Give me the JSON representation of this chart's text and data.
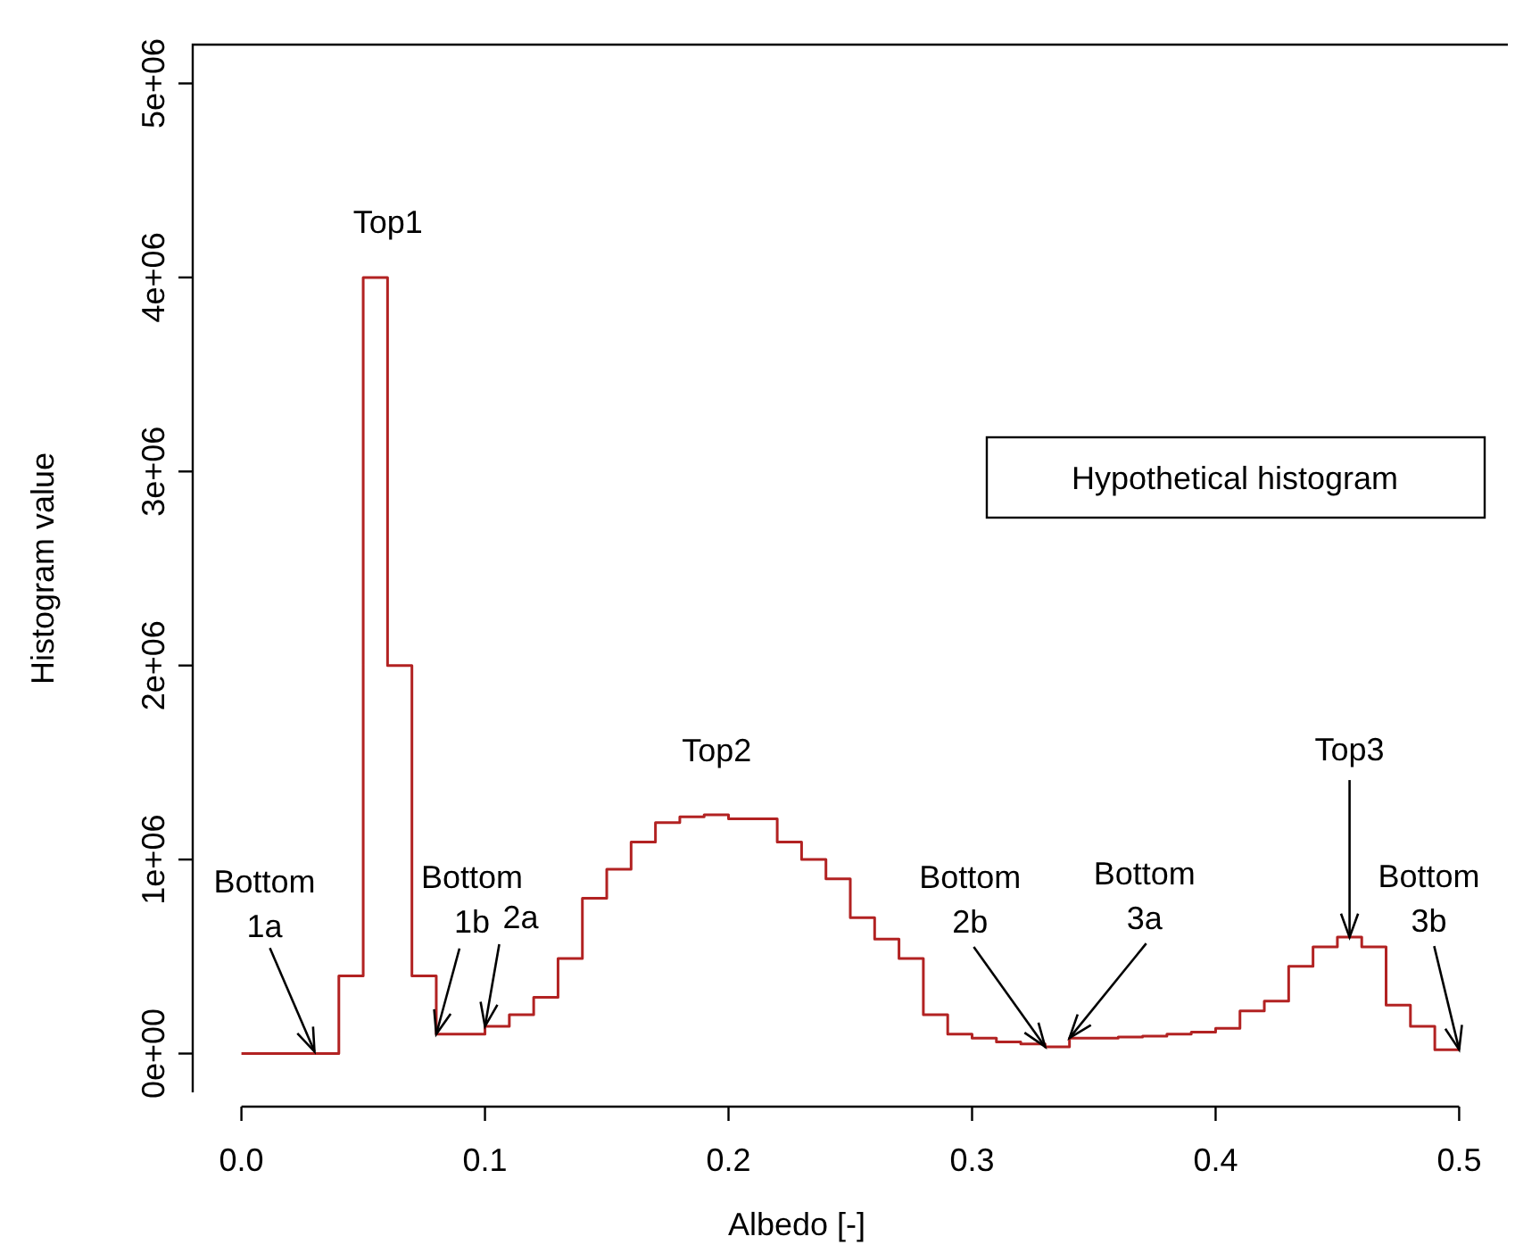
{
  "chart_data": {
    "type": "histogram",
    "xlabel": "Albedo [-]",
    "ylabel": "Histogram value",
    "bins": [
      0,
      0.01,
      0.02,
      0.03,
      0.04,
      0.05,
      0.06,
      0.07,
      0.08,
      0.09,
      0.1,
      0.11,
      0.12,
      0.13,
      0.14,
      0.15,
      0.16,
      0.17,
      0.18,
      0.19,
      0.2,
      0.21,
      0.22,
      0.23,
      0.24,
      0.25,
      0.26,
      0.27,
      0.28,
      0.29,
      0.3,
      0.31,
      0.32,
      0.33,
      0.34,
      0.35,
      0.36,
      0.37,
      0.38,
      0.39,
      0.4,
      0.41,
      0.42,
      0.43,
      0.44,
      0.45,
      0.46,
      0.47,
      0.48,
      0.49,
      0.5
    ],
    "values": [
      0,
      0,
      0,
      0,
      400000,
      4000000,
      2000000,
      400000,
      100000,
      100000,
      140000,
      200000,
      290000,
      490000,
      800000,
      950000,
      1090000,
      1190000,
      1220000,
      1230000,
      1210000,
      1210000,
      1090000,
      1000000,
      900000,
      700000,
      590000,
      490000,
      200000,
      100000,
      80000,
      60000,
      50000,
      35000,
      80000,
      80000,
      85000,
      90000,
      100000,
      110000,
      130000,
      220000,
      270000,
      450000,
      550000,
      600000,
      550000,
      250000,
      140000,
      20000
    ],
    "color": "#b22222",
    "xlim": [
      -0.02,
      0.52
    ],
    "xticks": [
      {
        "value": 0,
        "label": "0.0"
      },
      0.1,
      0.2,
      0.3,
      0.4,
      0.5
    ],
    "ylim": [
      -200000,
      5200000
    ],
    "yticks": [
      {
        "value": 0,
        "label": "0e+00"
      },
      {
        "value": 1000000,
        "label": "1e+06"
      },
      {
        "value": 2000000,
        "label": "2e+06"
      },
      {
        "value": 3000000,
        "label": "3e+06"
      },
      {
        "value": 4000000,
        "label": "4e+06"
      },
      {
        "value": 5000000,
        "label": "5e+06"
      }
    ],
    "grid": false,
    "annotations": [
      {
        "text": "Top1",
        "x": 0.055,
        "y": 4000000
      },
      {
        "text": "Top2",
        "x": 0.19,
        "y": 1230000
      },
      {
        "text": "Top3",
        "x": 0.455,
        "y": 600000
      },
      {
        "text": "Bottom\n1a",
        "x": 0.03,
        "y": 10000
      },
      {
        "text": "Bottom\n1b",
        "x": 0.08,
        "y": 100000
      },
      {
        "text": "2a",
        "x": 0.1,
        "y": 140000
      },
      {
        "text": "Bottom\n2b",
        "x": 0.33,
        "y": 35000
      },
      {
        "text": "Bottom\n3a",
        "x": 0.34,
        "y": 80000
      },
      {
        "text": "Bottom\n3b",
        "x": 0.5,
        "y": 20000
      },
      "Hypothetical histogram"
    ]
  }
}
